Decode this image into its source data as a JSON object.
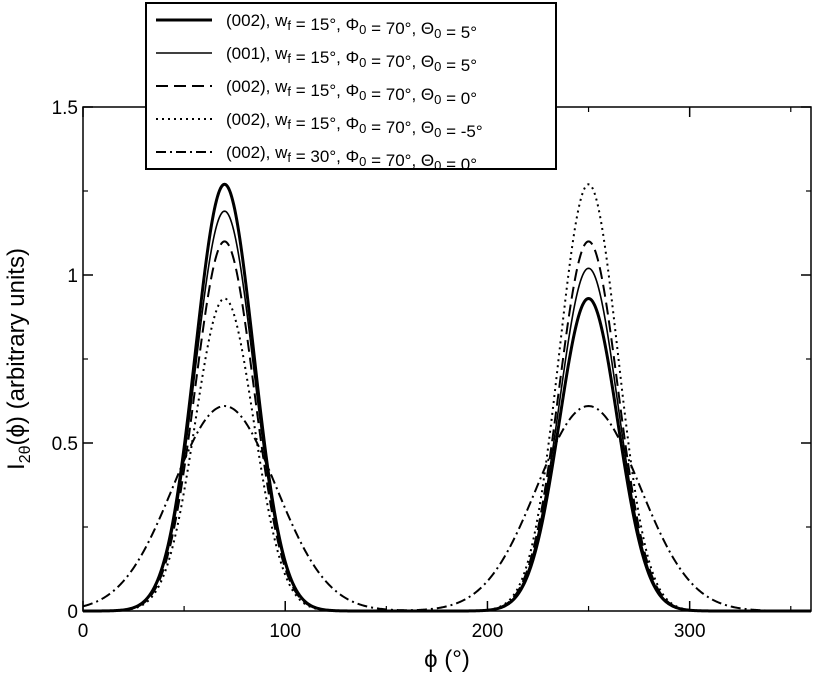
{
  "chart_data": {
    "type": "line",
    "xlabel": "ϕ  (°)",
    "ylabel": "I2θ(ϕ)  (arbitrary units)",
    "xlim": [
      0,
      360
    ],
    "ylim": [
      0,
      1.5
    ],
    "x_ticks": [
      {
        "value": 0,
        "label": "0"
      },
      {
        "value": 100,
        "label": "100"
      },
      {
        "value": 200,
        "label": "200"
      },
      {
        "value": 300,
        "label": "300"
      }
    ],
    "y_ticks": [
      {
        "value": 0,
        "label": "0"
      },
      {
        "value": 0.5,
        "label": "0.5"
      },
      {
        "value": 1,
        "label": "1"
      },
      {
        "value": 1.5,
        "label": "1.5"
      }
    ],
    "grid": false,
    "legend_position": "top-left",
    "series": [
      {
        "name": "(002), w_f = 15°, Φ_0 = 70°, Θ_0 =  5°",
        "style": "solid-thick",
        "peaks": [
          {
            "center": 70,
            "height": 1.27,
            "half_width": 17
          },
          {
            "center": 250,
            "height": 0.93,
            "half_width": 17
          }
        ]
      },
      {
        "name": "(001), w_f = 15°, Φ_0 = 70°, Θ_0 =  5°",
        "style": "solid-thin",
        "peaks": [
          {
            "center": 70,
            "height": 1.19,
            "half_width": 17
          },
          {
            "center": 250,
            "height": 1.02,
            "half_width": 17
          }
        ]
      },
      {
        "name": "(002), w_f = 15°, Φ_0 = 70°, Θ_0 =  0°",
        "style": "dashed",
        "peaks": [
          {
            "center": 70,
            "height": 1.1,
            "half_width": 17
          },
          {
            "center": 250,
            "height": 1.1,
            "half_width": 17
          }
        ]
      },
      {
        "name": "(002), w_f = 15°, Φ_0 = 70°, Θ_0 = -5°",
        "style": "dotted",
        "peaks": [
          {
            "center": 70,
            "height": 0.93,
            "half_width": 17
          },
          {
            "center": 250,
            "height": 1.27,
            "half_width": 17
          }
        ]
      },
      {
        "name": "(002), w_f = 30°, Φ_0 = 70°, Θ_0 =  0°",
        "style": "dashdot",
        "peaks": [
          {
            "center": 70,
            "height": 0.61,
            "half_width": 30
          },
          {
            "center": 250,
            "height": 0.61,
            "half_width": 30
          }
        ]
      }
    ]
  }
}
